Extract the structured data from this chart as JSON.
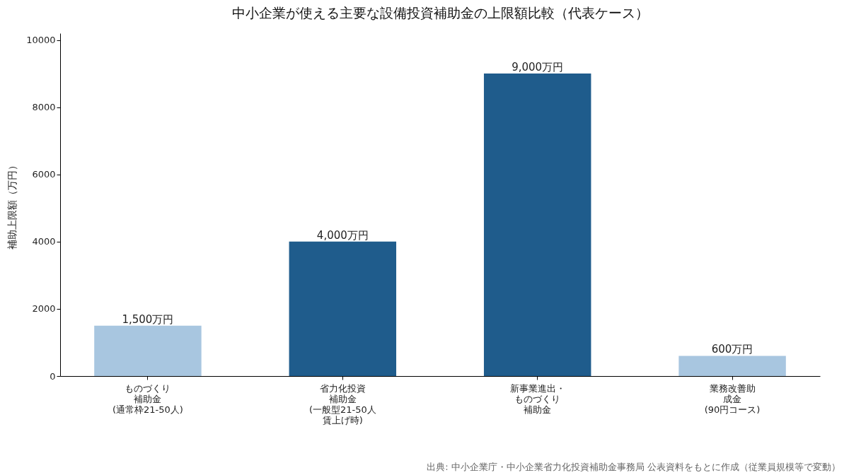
{
  "chart_data": {
    "type": "bar",
    "title": "中小企業が使える主要な設備投資補助金の上限額比較（代表ケース）",
    "ylabel": "補助上限額（万円）",
    "categories": [
      "ものづくり補助金(通常枠21-50人)",
      "省力化投資補助金(一般型21-50人賃上げ時)",
      "新事業進出・ものづくり補助金",
      "業務改善助成金(90円コース)"
    ],
    "values": [
      1500,
      4000,
      9000,
      600
    ],
    "value_labels": [
      "1,500万円",
      "4,000万円",
      "9,000万円",
      "600万円"
    ],
    "colors": [
      "#a8c6e0",
      "#1f5c8c",
      "#1f5c8c",
      "#a8c6e0"
    ],
    "ylim": [
      0,
      10200
    ],
    "yticks": [
      0,
      2000,
      4000,
      6000,
      8000,
      10000
    ],
    "grid": false,
    "annotations": [
      "出典: 中小企業庁・中小企業省力化投資補助金事務局 公表資料をもとに作成（従業員規模等で変動）"
    ]
  }
}
